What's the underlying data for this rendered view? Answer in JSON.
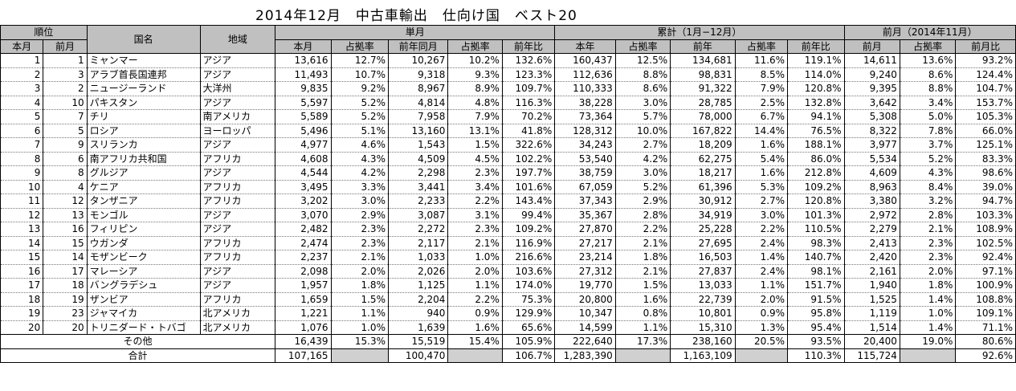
{
  "title": "2014年12月　中古車輸出　仕向け国　ベスト20",
  "headers": {
    "rank": "順位",
    "country": "国名",
    "region": "地域",
    "monthly": "単月",
    "cumulative": "累計（1月−12月）",
    "prev_month": "前月（2014年11月）",
    "this_month_rank": "本月",
    "prev_month_rank": "前月",
    "m_this": "本月",
    "m_share": "占拠率",
    "m_prev_year": "前年同月",
    "m_share2": "占拠率",
    "m_yoy": "前年比",
    "c_this": "本年",
    "c_share": "占拠率",
    "c_prev_year": "前年",
    "c_share2": "占拠率",
    "c_yoy": "前年比",
    "p_value": "前月",
    "p_share": "占拠率",
    "p_ratio": "前月比"
  },
  "rows": [
    {
      "rank": "1",
      "prev": "1",
      "country": "ミャンマー",
      "region": "アジア",
      "m": "13,616",
      "ms": "12.7%",
      "mp": "10,267",
      "mps": "10.2%",
      "my": "132.6%",
      "c": "160,437",
      "cs": "12.5%",
      "cp": "134,681",
      "cps": "11.6%",
      "cy": "119.1%",
      "p": "14,611",
      "ps": "13.6%",
      "pr": "93.2%"
    },
    {
      "rank": "2",
      "prev": "3",
      "country": "アラブ首長国連邦",
      "region": "アジア",
      "m": "11,493",
      "ms": "10.7%",
      "mp": "9,318",
      "mps": "9.3%",
      "my": "123.3%",
      "c": "112,636",
      "cs": "8.8%",
      "cp": "98,831",
      "cps": "8.5%",
      "cy": "114.0%",
      "p": "9,240",
      "ps": "8.6%",
      "pr": "124.4%"
    },
    {
      "rank": "3",
      "prev": "2",
      "country": "ニュージーランド",
      "region": "大洋州",
      "m": "9,835",
      "ms": "9.2%",
      "mp": "8,967",
      "mps": "8.9%",
      "my": "109.7%",
      "c": "110,333",
      "cs": "8.6%",
      "cp": "91,322",
      "cps": "7.9%",
      "cy": "120.8%",
      "p": "9,395",
      "ps": "8.8%",
      "pr": "104.7%"
    },
    {
      "rank": "4",
      "prev": "10",
      "country": "パキスタン",
      "region": "アジア",
      "m": "5,597",
      "ms": "5.2%",
      "mp": "4,814",
      "mps": "4.8%",
      "my": "116.3%",
      "c": "38,228",
      "cs": "3.0%",
      "cp": "28,785",
      "cps": "2.5%",
      "cy": "132.8%",
      "p": "3,642",
      "ps": "3.4%",
      "pr": "153.7%"
    },
    {
      "rank": "5",
      "prev": "7",
      "country": "チリ",
      "region": "南アメリカ",
      "m": "5,589",
      "ms": "5.2%",
      "mp": "7,958",
      "mps": "7.9%",
      "my": "70.2%",
      "c": "73,364",
      "cs": "5.7%",
      "cp": "78,000",
      "cps": "6.7%",
      "cy": "94.1%",
      "p": "5,308",
      "ps": "5.0%",
      "pr": "105.3%"
    },
    {
      "rank": "6",
      "prev": "5",
      "country": "ロシア",
      "region": "ヨーロッパ",
      "m": "5,496",
      "ms": "5.1%",
      "mp": "13,160",
      "mps": "13.1%",
      "my": "41.8%",
      "c": "128,312",
      "cs": "10.0%",
      "cp": "167,822",
      "cps": "14.4%",
      "cy": "76.5%",
      "p": "8,322",
      "ps": "7.8%",
      "pr": "66.0%"
    },
    {
      "rank": "7",
      "prev": "9",
      "country": "スリランカ",
      "region": "アジア",
      "m": "4,977",
      "ms": "4.6%",
      "mp": "1,543",
      "mps": "1.5%",
      "my": "322.6%",
      "c": "34,243",
      "cs": "2.7%",
      "cp": "18,209",
      "cps": "1.6%",
      "cy": "188.1%",
      "p": "3,977",
      "ps": "3.7%",
      "pr": "125.1%"
    },
    {
      "rank": "8",
      "prev": "6",
      "country": "南アフリカ共和国",
      "region": "アフリカ",
      "m": "4,608",
      "ms": "4.3%",
      "mp": "4,509",
      "mps": "4.5%",
      "my": "102.2%",
      "c": "53,540",
      "cs": "4.2%",
      "cp": "62,275",
      "cps": "5.4%",
      "cy": "86.0%",
      "p": "5,534",
      "ps": "5.2%",
      "pr": "83.3%"
    },
    {
      "rank": "9",
      "prev": "8",
      "country": "グルジア",
      "region": "アジア",
      "m": "4,544",
      "ms": "4.2%",
      "mp": "2,298",
      "mps": "2.3%",
      "my": "197.7%",
      "c": "38,759",
      "cs": "3.0%",
      "cp": "18,217",
      "cps": "1.6%",
      "cy": "212.8%",
      "p": "4,609",
      "ps": "4.3%",
      "pr": "98.6%"
    },
    {
      "rank": "10",
      "prev": "4",
      "country": "ケニア",
      "region": "アフリカ",
      "m": "3,495",
      "ms": "3.3%",
      "mp": "3,441",
      "mps": "3.4%",
      "my": "101.6%",
      "c": "67,059",
      "cs": "5.2%",
      "cp": "61,396",
      "cps": "5.3%",
      "cy": "109.2%",
      "p": "8,963",
      "ps": "8.4%",
      "pr": "39.0%"
    },
    {
      "rank": "11",
      "prev": "12",
      "country": "タンザニア",
      "region": "アフリカ",
      "m": "3,202",
      "ms": "3.0%",
      "mp": "2,233",
      "mps": "2.2%",
      "my": "143.4%",
      "c": "37,343",
      "cs": "2.9%",
      "cp": "30,912",
      "cps": "2.7%",
      "cy": "120.8%",
      "p": "3,380",
      "ps": "3.2%",
      "pr": "94.7%"
    },
    {
      "rank": "12",
      "prev": "13",
      "country": "モンゴル",
      "region": "アジア",
      "m": "3,070",
      "ms": "2.9%",
      "mp": "3,087",
      "mps": "3.1%",
      "my": "99.4%",
      "c": "35,367",
      "cs": "2.8%",
      "cp": "34,919",
      "cps": "3.0%",
      "cy": "101.3%",
      "p": "2,972",
      "ps": "2.8%",
      "pr": "103.3%"
    },
    {
      "rank": "13",
      "prev": "16",
      "country": "フィリピン",
      "region": "アジア",
      "m": "2,482",
      "ms": "2.3%",
      "mp": "2,272",
      "mps": "2.3%",
      "my": "109.2%",
      "c": "27,870",
      "cs": "2.2%",
      "cp": "25,228",
      "cps": "2.2%",
      "cy": "110.5%",
      "p": "2,279",
      "ps": "2.1%",
      "pr": "108.9%"
    },
    {
      "rank": "14",
      "prev": "15",
      "country": "ウガンダ",
      "region": "アフリカ",
      "m": "2,474",
      "ms": "2.3%",
      "mp": "2,117",
      "mps": "2.1%",
      "my": "116.9%",
      "c": "27,217",
      "cs": "2.1%",
      "cp": "27,695",
      "cps": "2.4%",
      "cy": "98.3%",
      "p": "2,413",
      "ps": "2.3%",
      "pr": "102.5%"
    },
    {
      "rank": "15",
      "prev": "14",
      "country": "モザンビーク",
      "region": "アフリカ",
      "m": "2,237",
      "ms": "2.1%",
      "mp": "1,033",
      "mps": "1.0%",
      "my": "216.6%",
      "c": "23,214",
      "cs": "1.8%",
      "cp": "16,503",
      "cps": "1.4%",
      "cy": "140.7%",
      "p": "2,420",
      "ps": "2.3%",
      "pr": "92.4%"
    },
    {
      "rank": "16",
      "prev": "17",
      "country": "マレーシア",
      "region": "アジア",
      "m": "2,098",
      "ms": "2.0%",
      "mp": "2,026",
      "mps": "2.0%",
      "my": "103.6%",
      "c": "27,312",
      "cs": "2.1%",
      "cp": "27,837",
      "cps": "2.4%",
      "cy": "98.1%",
      "p": "2,161",
      "ps": "2.0%",
      "pr": "97.1%"
    },
    {
      "rank": "17",
      "prev": "18",
      "country": "バングラデシュ",
      "region": "アジア",
      "m": "1,957",
      "ms": "1.8%",
      "mp": "1,125",
      "mps": "1.1%",
      "my": "174.0%",
      "c": "19,770",
      "cs": "1.5%",
      "cp": "13,033",
      "cps": "1.1%",
      "cy": "151.7%",
      "p": "1,940",
      "ps": "1.8%",
      "pr": "100.9%"
    },
    {
      "rank": "18",
      "prev": "19",
      "country": "ザンビア",
      "region": "アフリカ",
      "m": "1,659",
      "ms": "1.5%",
      "mp": "2,204",
      "mps": "2.2%",
      "my": "75.3%",
      "c": "20,800",
      "cs": "1.6%",
      "cp": "22,739",
      "cps": "2.0%",
      "cy": "91.5%",
      "p": "1,525",
      "ps": "1.4%",
      "pr": "108.8%"
    },
    {
      "rank": "19",
      "prev": "23",
      "country": "ジャマイカ",
      "region": "北アメリカ",
      "m": "1,221",
      "ms": "1.1%",
      "mp": "940",
      "mps": "0.9%",
      "my": "129.9%",
      "c": "10,347",
      "cs": "0.8%",
      "cp": "10,801",
      "cps": "0.9%",
      "cy": "95.8%",
      "p": "1,119",
      "ps": "1.0%",
      "pr": "109.1%"
    },
    {
      "rank": "20",
      "prev": "20",
      "country": "トリニダード・トバゴ",
      "region": "北アメリカ",
      "m": "1,076",
      "ms": "1.0%",
      "mp": "1,639",
      "mps": "1.6%",
      "my": "65.6%",
      "c": "14,599",
      "cs": "1.1%",
      "cp": "15,310",
      "cps": "1.3%",
      "cy": "95.4%",
      "p": "1,514",
      "ps": "1.4%",
      "pr": "71.1%"
    }
  ],
  "others": {
    "label": "その他",
    "m": "16,439",
    "ms": "15.3%",
    "mp": "15,519",
    "mps": "15.4%",
    "my": "105.9%",
    "c": "222,640",
    "cs": "17.3%",
    "cp": "238,160",
    "cps": "20.5%",
    "cy": "93.5%",
    "p": "20,400",
    "ps": "19.0%",
    "pr": "80.6%"
  },
  "total": {
    "label": "合計",
    "m": "107,165",
    "ms": "",
    "mp": "100,470",
    "mps": "",
    "my": "106.7%",
    "c": "1,283,390",
    "cs": "",
    "cp": "1,163,109",
    "cps": "",
    "cy": "110.3%",
    "p": "115,724",
    "ps": "",
    "pr": "92.6%"
  }
}
